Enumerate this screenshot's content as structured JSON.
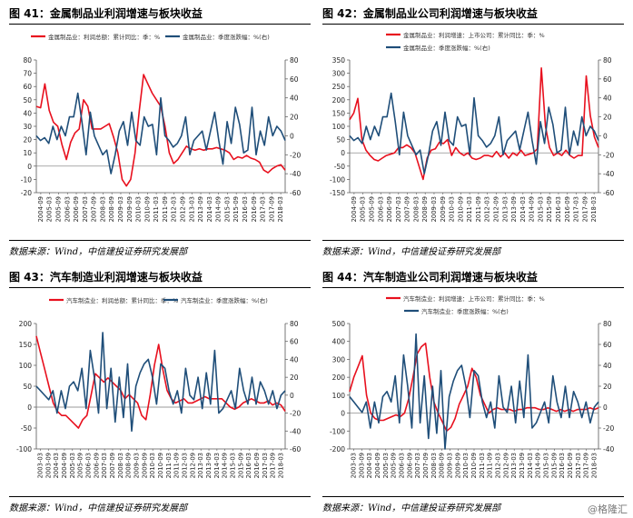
{
  "source_note": "数据来源：Wind，中信建投证券研究发展部",
  "watermark": "@格隆汇",
  "chart_data": [
    {
      "type": "line",
      "title": "图 41：金属制品业利润增速与板块收益",
      "x_labels": [
        "2004-09",
        "2005-03",
        "2005-09",
        "2006-03",
        "2006-09",
        "2007-03",
        "2007-09",
        "2008-03",
        "2008-09",
        "2009-03",
        "2009-09",
        "2010-03",
        "2010-09",
        "2011-03",
        "2011-09",
        "2012-03",
        "2012-09",
        "2013-03",
        "2013-09",
        "2014-03",
        "2014-09",
        "2015-03",
        "2015-09",
        "2016-03",
        "2016-09",
        "2017-03",
        "2017-09",
        "2018-03"
      ],
      "y_left": {
        "min": -20,
        "max": 80,
        "step": 10
      },
      "y_right": {
        "min": -60,
        "max": 80,
        "step": 20
      },
      "series": [
        {
          "name": "金属制品业：利润总额：累计同比：季：%",
          "axis": "left",
          "color": "#e8101e",
          "values": [
            45,
            44,
            62,
            42,
            33,
            30,
            16,
            5,
            18,
            25,
            28,
            50,
            45,
            28,
            28,
            28,
            30,
            32,
            22,
            10,
            -10,
            -15,
            -10,
            10,
            42,
            69,
            62,
            55,
            50,
            45,
            30,
            10,
            2,
            5,
            10,
            15,
            13,
            12,
            13,
            12,
            13,
            13,
            14,
            13,
            12,
            10,
            5,
            7,
            6,
            8,
            6,
            5,
            3,
            -3,
            -5,
            -2,
            0,
            1,
            -3
          ]
        },
        {
          "name": "金属制品业：季度涨跌幅：%(右)",
          "axis": "right",
          "color": "#1f4e79",
          "values": [
            0,
            -5,
            -2,
            -8,
            10,
            -4,
            10,
            0,
            20,
            20,
            45,
            15,
            -20,
            25,
            0,
            -10,
            -20,
            -15,
            -40,
            -20,
            5,
            15,
            -10,
            25,
            -5,
            -10,
            20,
            10,
            12,
            -20,
            40,
            0,
            -5,
            -12,
            -8,
            0,
            20,
            -20,
            -5,
            0,
            5,
            -15,
            5,
            25,
            -5,
            -30,
            15,
            -8,
            30,
            12,
            -18,
            -15,
            30,
            -20,
            5,
            -10,
            20,
            0,
            10,
            5,
            -5
          ]
        }
      ]
    },
    {
      "type": "line",
      "title": "图 42：金属制品业公司利润增速与板块收益",
      "x_labels": [
        "2004-09",
        "2005-03",
        "2005-09",
        "2006-03",
        "2006-09",
        "2007-03",
        "2007-09",
        "2008-03",
        "2008-09",
        "2009-03",
        "2009-09",
        "2010-03",
        "2010-09",
        "2011-03",
        "2011-09",
        "2012-03",
        "2012-09",
        "2013-03",
        "2013-09",
        "2014-03",
        "2014-09",
        "2015-03",
        "2015-09",
        "2016-03",
        "2016-09",
        "2017-03",
        "2017-09",
        "2018-03"
      ],
      "y_left": {
        "min": -150,
        "max": 350,
        "step": 50
      },
      "y_right": {
        "min": -60,
        "max": 80,
        "step": 20
      },
      "series": [
        {
          "name": "金属制品业：利润增速：上市公司：累计同比：季：%",
          "axis": "left",
          "color": "#e8101e",
          "values": [
            125,
            150,
            205,
            50,
            10,
            -10,
            -25,
            -30,
            -20,
            -10,
            -5,
            0,
            20,
            20,
            30,
            20,
            0,
            -50,
            -100,
            -20,
            10,
            15,
            40,
            35,
            50,
            -10,
            20,
            0,
            -10,
            0,
            -20,
            -25,
            -20,
            -10,
            -10,
            -15,
            5,
            -15,
            0,
            -20,
            0,
            -10,
            10,
            -10,
            -5,
            0,
            15,
            320,
            100,
            20,
            -10,
            0,
            -10,
            10,
            -10,
            -20,
            -10,
            -10,
            290,
            140,
            60,
            20
          ]
        },
        {
          "name": "金属制品业：季度涨跌幅：%(右)",
          "axis": "right",
          "color": "#1f4e79",
          "values": [
            0,
            -5,
            -2,
            -8,
            10,
            -4,
            10,
            0,
            20,
            20,
            45,
            15,
            -20,
            25,
            0,
            -10,
            -20,
            -15,
            -40,
            -20,
            5,
            15,
            -10,
            25,
            -5,
            -10,
            20,
            10,
            12,
            -20,
            40,
            0,
            -5,
            -12,
            -8,
            0,
            20,
            -20,
            -5,
            0,
            5,
            -15,
            5,
            25,
            -5,
            -30,
            15,
            -8,
            30,
            12,
            -18,
            -15,
            30,
            -20,
            5,
            -10,
            20,
            0,
            10,
            5,
            -5
          ]
        }
      ]
    },
    {
      "type": "line",
      "title": "图 43：汽车制造业利润增速与板块收益",
      "x_labels": [
        "2003-03",
        "2003-09",
        "2004-03",
        "2004-09",
        "2005-03",
        "2005-09",
        "2006-03",
        "2006-09",
        "2007-03",
        "2007-09",
        "2008-03",
        "2008-09",
        "2009-03",
        "2009-09",
        "2010-03",
        "2010-09",
        "2011-03",
        "2011-09",
        "2012-03",
        "2012-09",
        "2013-03",
        "2013-09",
        "2014-03",
        "2014-09",
        "2015-03",
        "2015-09",
        "2016-03",
        "2016-09",
        "2017-03",
        "2017-09",
        "2018-03"
      ],
      "y_left": {
        "min": -100,
        "max": 200,
        "step": 50
      },
      "y_right": {
        "min": -60,
        "max": 80,
        "step": 20
      },
      "series": [
        {
          "name": "汽车制造业：利润总额：累计同比：季：%",
          "axis": "left",
          "color": "#e8101e",
          "values": [
            170,
            130,
            90,
            50,
            10,
            -10,
            -20,
            -20,
            -30,
            -40,
            -50,
            -30,
            -20,
            30,
            80,
            70,
            60,
            70,
            60,
            50,
            40,
            20,
            30,
            20,
            10,
            -20,
            -30,
            30,
            100,
            150,
            90,
            40,
            20,
            10,
            15,
            20,
            10,
            10,
            15,
            20,
            25,
            20,
            20,
            20,
            20,
            10,
            0,
            -5,
            0,
            10,
            15,
            20,
            15,
            10,
            10,
            15,
            5,
            10,
            5,
            -10
          ]
        },
        {
          "name": "汽车制造业：季度涨跌幅：%(右)",
          "axis": "right",
          "color": "#1f4e79",
          "values": [
            10,
            5,
            0,
            -5,
            5,
            -20,
            5,
            -15,
            10,
            15,
            5,
            30,
            -15,
            50,
            20,
            -20,
            70,
            -15,
            30,
            -30,
            20,
            -25,
            35,
            -40,
            10,
            25,
            35,
            40,
            20,
            -10,
            35,
            30,
            5,
            -10,
            5,
            -20,
            30,
            0,
            -5,
            20,
            -15,
            25,
            -10,
            50,
            -20,
            -15,
            -5,
            5,
            -15,
            30,
            5,
            -10,
            20,
            -10,
            15,
            5,
            -10,
            5,
            -15,
            0,
            5
          ]
        }
      ]
    },
    {
      "type": "line",
      "title": "图 44：汽车制造业公司利润增速与板块收益",
      "x_labels": [
        "2003-03",
        "2003-09",
        "2004-03",
        "2004-09",
        "2005-03",
        "2005-09",
        "2006-03",
        "2006-09",
        "2007-03",
        "2007-09",
        "2008-03",
        "2008-09",
        "2009-03",
        "2009-09",
        "2010-03",
        "2010-09",
        "2011-03",
        "2011-09",
        "2012-03",
        "2012-09",
        "2013-03",
        "2013-09",
        "2014-03",
        "2014-09",
        "2015-03",
        "2015-09",
        "2016-03",
        "2016-09",
        "2017-03",
        "2017-09",
        "2018-03"
      ],
      "y_left": {
        "min": -200,
        "max": 500,
        "step": 100
      },
      "y_right": {
        "min": -40,
        "max": 80,
        "step": 20
      },
      "series": [
        {
          "name": "汽车制造业：利润增速：上市公司：累计同比：季：%",
          "axis": "left",
          "color": "#e8101e",
          "values": [
            120,
            200,
            260,
            320,
            100,
            0,
            -30,
            -40,
            -40,
            -30,
            -20,
            -10,
            -20,
            0,
            80,
            200,
            330,
            370,
            390,
            200,
            60,
            0,
            -50,
            -100,
            -80,
            -30,
            50,
            100,
            150,
            250,
            200,
            100,
            50,
            0,
            20,
            30,
            20,
            20,
            20,
            10,
            20,
            20,
            30,
            30,
            30,
            20,
            20,
            30,
            20,
            10,
            20,
            10,
            20,
            10,
            20,
            20,
            20,
            30,
            20,
            30
          ]
        },
        {
          "name": "汽车制造业：季度涨跌幅：%(右)",
          "axis": "right",
          "color": "#1f4e79",
          "values": [
            10,
            5,
            0,
            -5,
            5,
            -20,
            5,
            -15,
            10,
            15,
            5,
            30,
            -15,
            50,
            20,
            -20,
            70,
            -15,
            30,
            -30,
            20,
            -25,
            35,
            -40,
            10,
            25,
            35,
            40,
            20,
            -10,
            35,
            30,
            5,
            -10,
            5,
            -20,
            30,
            0,
            -5,
            20,
            -15,
            25,
            -10,
            50,
            -20,
            -15,
            -5,
            5,
            -15,
            30,
            5,
            -10,
            20,
            -10,
            15,
            5,
            -10,
            5,
            -15,
            0,
            5
          ]
        }
      ]
    }
  ]
}
